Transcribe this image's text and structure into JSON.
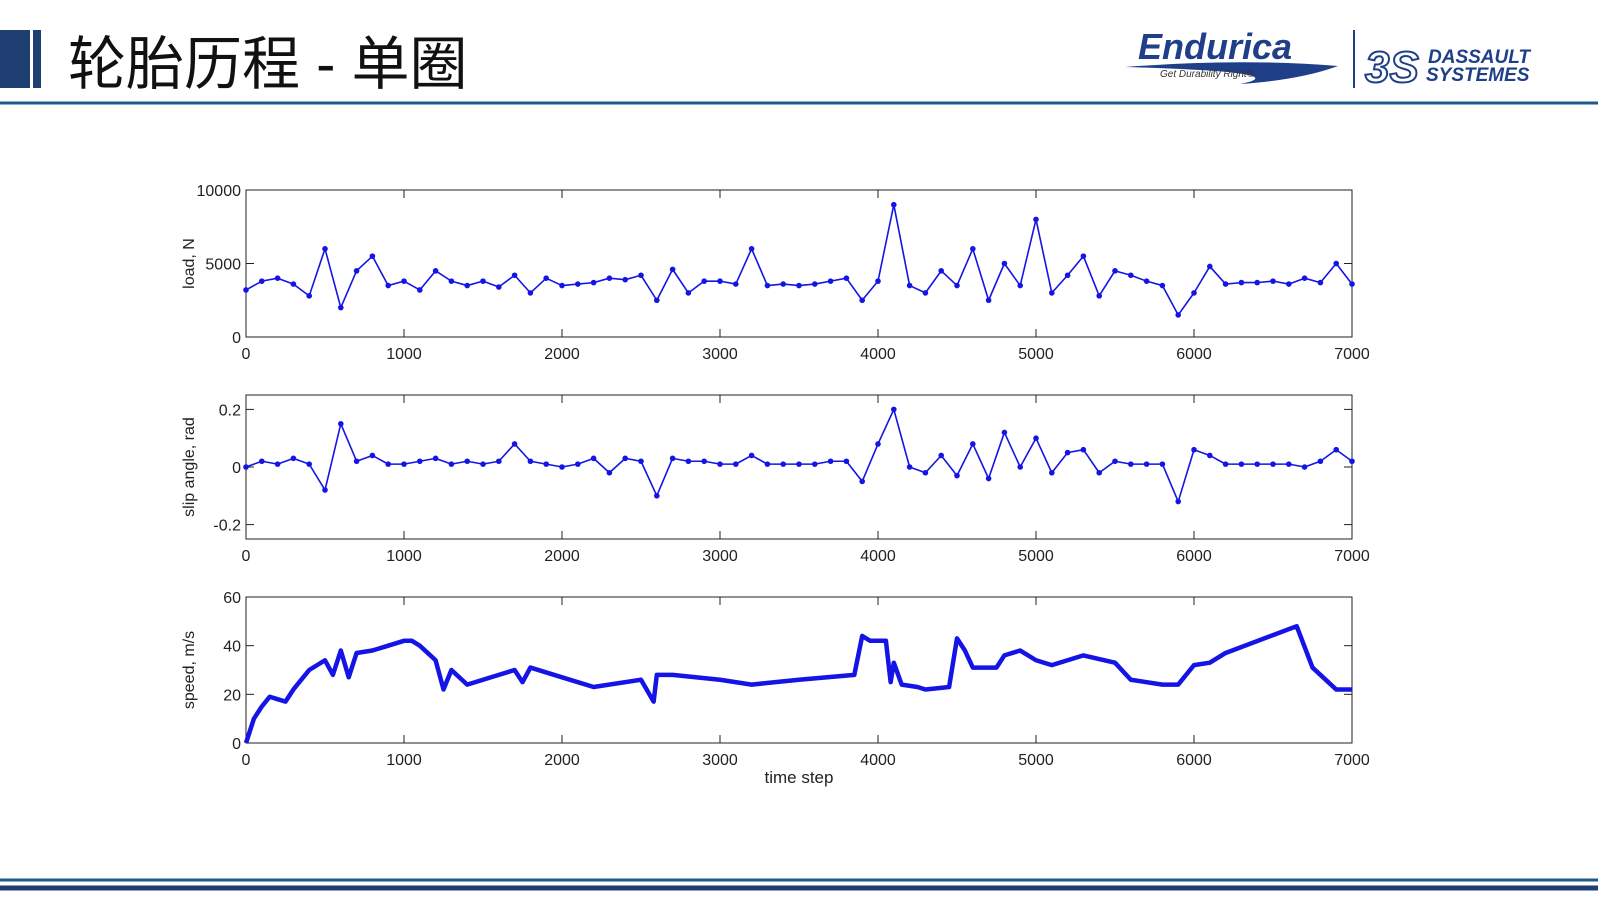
{
  "header": {
    "title": "轮胎历程 - 单圈"
  },
  "logos": {
    "endurica": "Endurica",
    "endurica_tagline": "Get Durability Right®",
    "dassault_1": "DASSAULT",
    "dassault_2": "SYSTEMES"
  },
  "chart_data": [
    {
      "type": "line",
      "ylabel": "load, N",
      "color": "#1414e6",
      "markers": true,
      "x": [
        0,
        100,
        200,
        300,
        400,
        500,
        600,
        700,
        800,
        900,
        1000,
        1100,
        1200,
        1300,
        1400,
        1500,
        1600,
        1700,
        1800,
        1900,
        2000,
        2100,
        2200,
        2300,
        2400,
        2500,
        2600,
        2700,
        2800,
        2900,
        3000,
        3100,
        3200,
        3300,
        3400,
        3500,
        3600,
        3700,
        3800,
        3900,
        4000,
        4100,
        4200,
        4300,
        4400,
        4500,
        4600,
        4700,
        4800,
        4900,
        5000,
        5100,
        5200,
        5300,
        5400,
        5500,
        5600,
        5700,
        5800,
        5900,
        6000,
        6100,
        6200,
        6300,
        6400,
        6500,
        6600,
        6700,
        6800,
        6900,
        7000
      ],
      "values": [
        3200,
        3800,
        4000,
        3600,
        2800,
        6000,
        2000,
        4500,
        5500,
        3500,
        3800,
        3200,
        4500,
        3800,
        3500,
        3800,
        3400,
        4200,
        3000,
        4000,
        3500,
        3600,
        3700,
        4000,
        3900,
        4200,
        2500,
        4600,
        3000,
        3800,
        3800,
        3600,
        6000,
        3500,
        3600,
        3500,
        3600,
        3800,
        4000,
        2500,
        3800,
        9000,
        3500,
        3000,
        4500,
        3500,
        6000,
        2500,
        5000,
        3500,
        8000,
        3000,
        4200,
        5500,
        2800,
        4500,
        4200,
        3800,
        3500,
        1500,
        3000,
        4800,
        3600,
        3700,
        3700,
        3800,
        3600,
        4000,
        3700,
        5000,
        3600
      ],
      "xlim": [
        0,
        7000
      ],
      "xticks": [
        0,
        1000,
        2000,
        3000,
        4000,
        5000,
        6000,
        7000
      ],
      "ylim": [
        0,
        10000
      ],
      "yticks": [
        0,
        5000,
        10000
      ]
    },
    {
      "type": "line",
      "ylabel": "slip angle, rad",
      "color": "#1414e6",
      "markers": true,
      "x": [
        0,
        100,
        200,
        300,
        400,
        500,
        600,
        700,
        800,
        900,
        1000,
        1100,
        1200,
        1300,
        1400,
        1500,
        1600,
        1700,
        1800,
        1900,
        2000,
        2100,
        2200,
        2300,
        2400,
        2500,
        2600,
        2700,
        2800,
        2900,
        3000,
        3100,
        3200,
        3300,
        3400,
        3500,
        3600,
        3700,
        3800,
        3900,
        4000,
        4100,
        4200,
        4300,
        4400,
        4500,
        4600,
        4700,
        4800,
        4900,
        5000,
        5100,
        5200,
        5300,
        5400,
        5500,
        5600,
        5700,
        5800,
        5900,
        6000,
        6100,
        6200,
        6300,
        6400,
        6500,
        6600,
        6700,
        6800,
        6900,
        7000
      ],
      "values": [
        0,
        0.02,
        0.01,
        0.03,
        0.01,
        -0.08,
        0.15,
        0.02,
        0.04,
        0.01,
        0.01,
        0.02,
        0.03,
        0.01,
        0.02,
        0.01,
        0.02,
        0.08,
        0.02,
        0.01,
        0,
        0.01,
        0.03,
        -0.02,
        0.03,
        0.02,
        -0.1,
        0.03,
        0.02,
        0.02,
        0.01,
        0.01,
        0.04,
        0.01,
        0.01,
        0.01,
        0.01,
        0.02,
        0.02,
        -0.05,
        0.08,
        0.2,
        0,
        -0.02,
        0.04,
        -0.03,
        0.08,
        -0.04,
        0.12,
        0,
        0.1,
        -0.02,
        0.05,
        0.06,
        -0.02,
        0.02,
        0.01,
        0.01,
        0.01,
        -0.12,
        0.06,
        0.04,
        0.01,
        0.01,
        0.01,
        0.01,
        0.01,
        0,
        0.02,
        0.06,
        0.02
      ],
      "xlim": [
        0,
        7000
      ],
      "xticks": [
        0,
        1000,
        2000,
        3000,
        4000,
        5000,
        6000,
        7000
      ],
      "ylim": [
        -0.25,
        0.25
      ],
      "yticks": [
        -0.2,
        0,
        0.2
      ]
    },
    {
      "type": "line",
      "ylabel": "speed, m/s",
      "xlabel": "time step",
      "color": "#1414e6",
      "markers": false,
      "x": [
        0,
        50,
        100,
        150,
        200,
        250,
        300,
        400,
        500,
        550,
        600,
        650,
        700,
        800,
        900,
        1000,
        1050,
        1100,
        1200,
        1250,
        1300,
        1400,
        1600,
        1700,
        1750,
        1800,
        2000,
        2200,
        2500,
        2580,
        2600,
        2700,
        3000,
        3200,
        3500,
        3850,
        3900,
        3950,
        4050,
        4080,
        4100,
        4150,
        4250,
        4300,
        4450,
        4500,
        4550,
        4600,
        4750,
        4800,
        4900,
        5000,
        5100,
        5300,
        5500,
        5600,
        5800,
        5900,
        6000,
        6100,
        6200,
        6650,
        6750,
        6850,
        6900,
        7000
      ],
      "values": [
        0,
        10,
        15,
        19,
        18,
        17,
        22,
        30,
        34,
        28,
        38,
        27,
        37,
        38,
        40,
        42,
        42,
        40,
        34,
        22,
        30,
        24,
        28,
        30,
        25,
        31,
        27,
        23,
        26,
        17,
        28,
        28,
        26,
        24,
        26,
        28,
        44,
        42,
        42,
        25,
        33,
        24,
        23,
        22,
        23,
        43,
        38,
        31,
        31,
        36,
        38,
        34,
        32,
        36,
        33,
        26,
        24,
        24,
        32,
        33,
        37,
        48,
        31,
        25,
        22,
        22
      ],
      "xlim": [
        0,
        7000
      ],
      "xticks": [
        0,
        1000,
        2000,
        3000,
        4000,
        5000,
        6000,
        7000
      ],
      "ylim": [
        0,
        60
      ],
      "yticks": [
        0,
        20,
        40,
        60
      ]
    }
  ]
}
